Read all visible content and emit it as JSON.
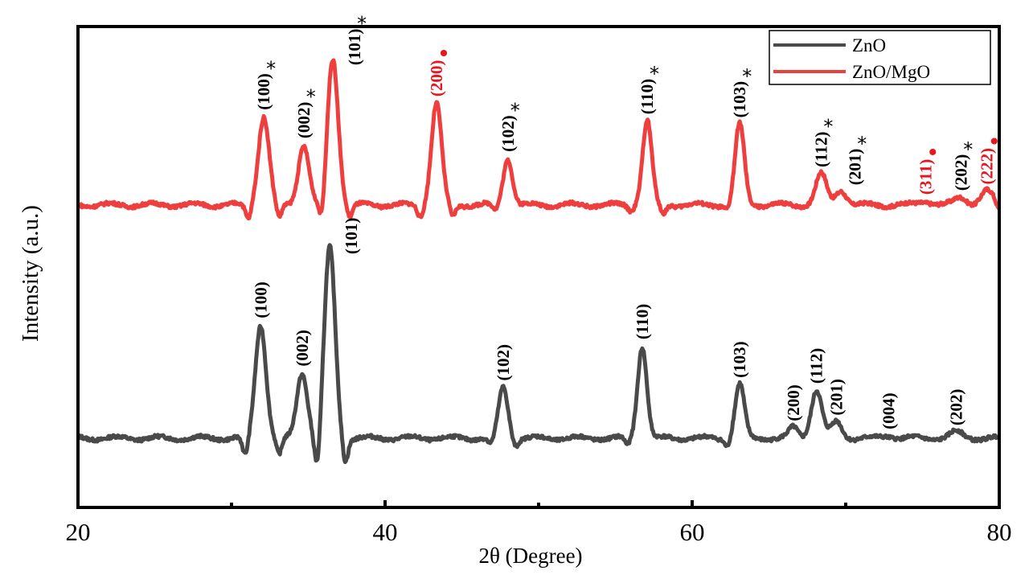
{
  "chart_data": {
    "type": "line",
    "title": "",
    "xlabel": "2θ (Degree)",
    "ylabel": "Intensity (a.u.)",
    "xlim": [
      20,
      80
    ],
    "ylim": [
      0,
      100
    ],
    "x_ticks": [
      "20",
      "40",
      "60",
      "80"
    ],
    "x_minor_ticks": [
      30,
      50,
      70
    ],
    "y_ticks": [],
    "grid": false,
    "legend_position": "top-right",
    "series": [
      {
        "name": "ZnO",
        "color": "#4a4a4a",
        "baseline": 14.4,
        "peaks": [
          {
            "x": 31.9,
            "height": 23.6,
            "width": 0.35,
            "label": "(100)"
          },
          {
            "x": 34.6,
            "height": 13.6,
            "width": 0.35,
            "label": "(002)"
          },
          {
            "x": 36.4,
            "height": 39.6,
            "width": 0.35,
            "label": "(101)"
          },
          {
            "x": 47.7,
            "height": 10.6,
            "width": 0.3,
            "label": "(102)"
          },
          {
            "x": 56.75,
            "height": 19.2,
            "width": 0.3,
            "label": "(110)"
          },
          {
            "x": 63.1,
            "height": 11.2,
            "width": 0.3,
            "label": "(103)"
          },
          {
            "x": 66.6,
            "height": 2.2,
            "width": 0.3,
            "label": "(200)"
          },
          {
            "x": 68.1,
            "height": 10.0,
            "width": 0.35,
            "label": "(112)"
          },
          {
            "x": 69.4,
            "height": 3.4,
            "width": 0.35,
            "label": "(201)"
          },
          {
            "x": 72.8,
            "height": 0.5,
            "width": 0.4,
            "label": "(004)"
          },
          {
            "x": 77.2,
            "height": 1.3,
            "width": 0.4,
            "label": "(202)"
          }
        ],
        "dips": [
          {
            "x": 30.9,
            "depth": 4.0
          },
          {
            "x": 33.1,
            "depth": 3.5
          },
          {
            "x": 35.6,
            "depth": 7.5
          },
          {
            "x": 37.4,
            "depth": 5.0
          },
          {
            "x": 46.9,
            "depth": 1.5
          },
          {
            "x": 48.5,
            "depth": 1.5
          },
          {
            "x": 55.8,
            "depth": 1.5
          },
          {
            "x": 62.3,
            "depth": 1.5
          }
        ]
      },
      {
        "name": "ZnO/MgO",
        "color": "#ef3e3e",
        "baseline": 62.9,
        "peaks": [
          {
            "x": 32.1,
            "height": 18.4,
            "width": 0.35,
            "label": "(100)",
            "marker": "*",
            "phase": "ZnO"
          },
          {
            "x": 34.7,
            "height": 12.5,
            "width": 0.35,
            "label": "(002)",
            "marker": "*",
            "phase": "ZnO"
          },
          {
            "x": 36.6,
            "height": 30.4,
            "width": 0.35,
            "label": "(101)",
            "marker": "*",
            "phase": "ZnO"
          },
          {
            "x": 43.35,
            "height": 21.2,
            "width": 0.33,
            "label": "(200)",
            "marker": "•",
            "phase": "MgO"
          },
          {
            "x": 48.0,
            "height": 9.7,
            "width": 0.3,
            "label": "(102)",
            "marker": "*",
            "phase": "ZnO"
          },
          {
            "x": 57.07,
            "height": 17.5,
            "width": 0.3,
            "label": "(110)",
            "marker": "*",
            "phase": "ZnO"
          },
          {
            "x": 63.1,
            "height": 16.8,
            "width": 0.3,
            "label": "(103)",
            "marker": "*",
            "phase": "ZnO"
          },
          {
            "x": 68.4,
            "height": 6.5,
            "width": 0.35,
            "label": "(112)",
            "marker": "*",
            "phase": "ZnO"
          },
          {
            "x": 69.7,
            "height": 3.1,
            "width": 0.35,
            "label": "(201)",
            "marker": "*",
            "phase": "ZnO"
          },
          {
            "x": 75.2,
            "height": 0.8,
            "width": 0.45,
            "label": "(311)",
            "marker": "•",
            "phase": "MgO"
          },
          {
            "x": 77.5,
            "height": 1.6,
            "width": 0.4,
            "label": "(202)",
            "marker": "*",
            "phase": "ZnO"
          },
          {
            "x": 79.2,
            "height": 2.9,
            "width": 0.4,
            "label": "(222)",
            "marker": "•",
            "phase": "MgO"
          }
        ],
        "dips": [
          {
            "x": 31.1,
            "depth": 3.0
          },
          {
            "x": 33.1,
            "depth": 3.0
          },
          {
            "x": 35.9,
            "depth": 5.0
          },
          {
            "x": 37.7,
            "depth": 2.5
          },
          {
            "x": 42.3,
            "depth": 2.5
          },
          {
            "x": 44.4,
            "depth": 2.5
          },
          {
            "x": 47.2,
            "depth": 1.2
          },
          {
            "x": 56.0,
            "depth": 1.0
          },
          {
            "x": 58.1,
            "depth": 2.0
          },
          {
            "x": 62.3,
            "depth": 1.0
          },
          {
            "x": 80.0,
            "depth": 1.5
          }
        ]
      }
    ]
  },
  "colors": {
    "label_zno": "#000000",
    "label_mgo": "#e8141e"
  }
}
